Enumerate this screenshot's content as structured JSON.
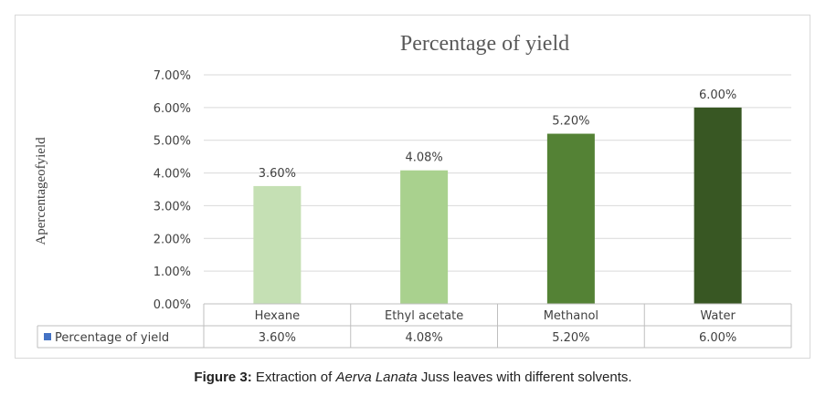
{
  "chart_data": {
    "type": "bar",
    "title": "Percentage of    yield",
    "ylabel": "Apercentageofyield",
    "xlabel": "",
    "ylim": [
      0,
      7
    ],
    "y_ticks": [
      "0.00%",
      "1.00%",
      "2.00%",
      "3.00%",
      "4.00%",
      "5.00%",
      "6.00%",
      "7.00%"
    ],
    "grid": true,
    "categories": [
      "Hexane",
      "Ethyl acetate",
      "Methanol",
      "Water"
    ],
    "series": [
      {
        "name": "Percentage of    yield",
        "values": [
          3.6,
          4.08,
          5.2,
          6.0
        ],
        "labels": [
          "3.60%",
          "4.08%",
          "5.20%",
          "6.00%"
        ]
      }
    ],
    "bar_colors": [
      "#c5e0b4",
      "#a9d18e",
      "#548235",
      "#385723"
    ],
    "legend_color": "#4472c4",
    "data_table": true
  },
  "caption": {
    "prefix": "Figure 3:",
    "text1": " Extraction of ",
    "italic": "Aerva Lanata",
    "text2": " Juss leaves with different solvents."
  }
}
